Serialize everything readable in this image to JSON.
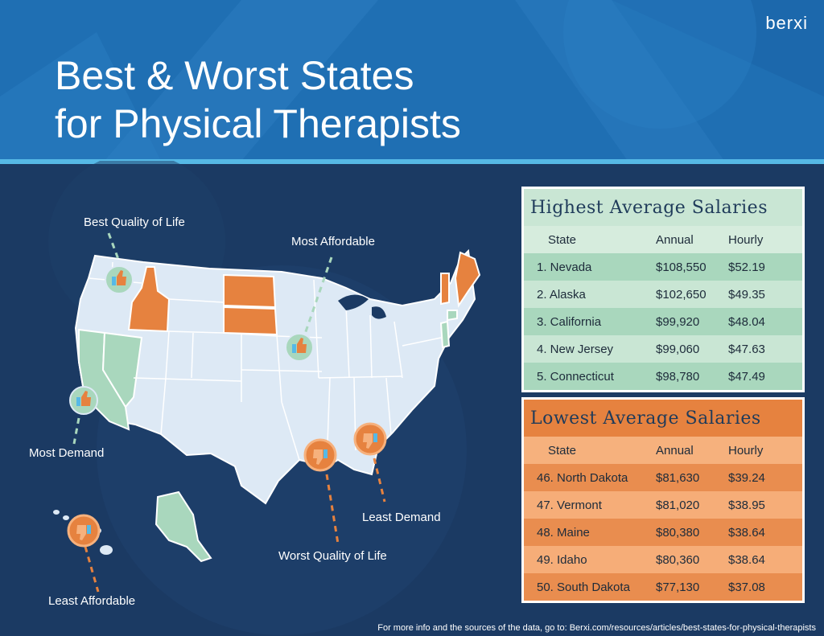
{
  "brand": "berxi",
  "title": {
    "line1": "Best & Worst States",
    "line2": "for Physical Therapists"
  },
  "callouts": {
    "best_quality": "Best Quality of Life",
    "most_affordable": "Most Affordable",
    "most_demand": "Most Demand",
    "least_demand": "Least Demand",
    "worst_quality": "Worst Quality of Life",
    "least_affordable": "Least Affordable"
  },
  "colors": {
    "header_blue": "#1f6fb3",
    "navy": "#1b3a63",
    "state_fill": "#dde9f5",
    "best_green": "#a9d7bd",
    "worst_orange": "#e6823f"
  },
  "icons": {
    "thumbs_up": "thumbs-up-icon",
    "thumbs_down": "thumbs-down-icon"
  },
  "highest": {
    "title": "Highest Average Salaries",
    "headers": {
      "state": "State",
      "annual": "Annual",
      "hourly": "Hourly"
    },
    "rows": [
      {
        "state": "1. Nevada",
        "annual": "$108,550",
        "hourly": "$52.19"
      },
      {
        "state": "2. Alaska",
        "annual": "$102,650",
        "hourly": "$49.35"
      },
      {
        "state": "3. California",
        "annual": "$99,920",
        "hourly": "$48.04"
      },
      {
        "state": "4. New Jersey",
        "annual": "$99,060",
        "hourly": "$47.63"
      },
      {
        "state": "5. Connecticut",
        "annual": "$98,780",
        "hourly": "$47.49"
      }
    ]
  },
  "lowest": {
    "title": "Lowest Average Salaries",
    "headers": {
      "state": "State",
      "annual": "Annual",
      "hourly": "Hourly"
    },
    "rows": [
      {
        "state": "46. North Dakota",
        "annual": "$81,630",
        "hourly": "$39.24"
      },
      {
        "state": "47. Vermont",
        "annual": "$81,020",
        "hourly": "$38.95"
      },
      {
        "state": "48. Maine",
        "annual": "$80,380",
        "hourly": "$38.64"
      },
      {
        "state": "49. Idaho",
        "annual": "$80,360",
        "hourly": "$38.64"
      },
      {
        "state": "50. South Dakota",
        "annual": "$77,130",
        "hourly": "$37.08"
      }
    ]
  },
  "footer": "For more info and the sources of the data, go to: Berxi.com/resources/articles/best-states-for-physical-therapists"
}
